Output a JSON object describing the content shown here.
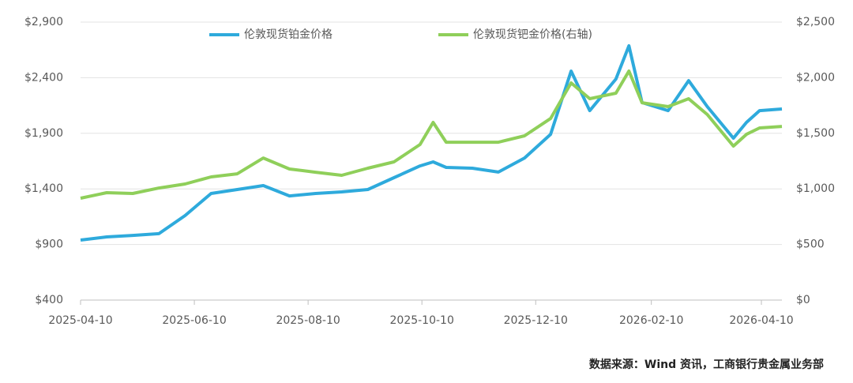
{
  "chart_data": {
    "type": "line",
    "legend": [
      "伦敦现货铂金价格",
      "伦敦现货钯金价格(右轴)"
    ],
    "source": "数据来源：Wind 资讯，工商银行贵金属业务部",
    "x": [
      "2025-04-10",
      "2025-04-24",
      "2025-05-08",
      "2025-05-22",
      "2025-06-05",
      "2025-06-19",
      "2025-07-03",
      "2025-07-17",
      "2025-07-31",
      "2025-08-14",
      "2025-08-28",
      "2025-09-11",
      "2025-09-25",
      "2025-10-09",
      "2025-10-16",
      "2025-10-23",
      "2025-11-06",
      "2025-11-20",
      "2025-12-04",
      "2025-12-18",
      "2025-12-29",
      "2026-01-08",
      "2026-01-22",
      "2026-01-29",
      "2026-02-05",
      "2026-02-19",
      "2026-03-02",
      "2026-03-12",
      "2026-03-26",
      "2026-04-02",
      "2026-04-09",
      "2026-04-21"
    ],
    "xlim": [
      "2025-04-10",
      "2026-04-21"
    ],
    "xticks": [
      "2025-04-10",
      "2025-06-10",
      "2025-08-10",
      "2025-10-10",
      "2025-12-10",
      "2026-02-10",
      "2026-04-10"
    ],
    "series": [
      {
        "name": "伦敦现货铂金价格",
        "color": "#2eaadc",
        "axis": "y",
        "values": [
          940,
          968,
          982,
          997,
          1160,
          1359,
          1394,
          1430,
          1337,
          1359,
          1373,
          1394,
          1501,
          1607,
          1643,
          1593,
          1586,
          1551,
          1678,
          1891,
          2460,
          2104,
          2388,
          2687,
          2176,
          2104,
          2374,
          2140,
          1856,
          1998,
          2104,
          2119
        ]
      },
      {
        "name": "伦敦现货钯金价格(右轴)",
        "color": "#8fcf5a",
        "axis": "y2",
        "values": [
          916,
          966,
          959,
          1008,
          1044,
          1108,
          1136,
          1278,
          1179,
          1150,
          1122,
          1186,
          1243,
          1399,
          1598,
          1420,
          1420,
          1420,
          1477,
          1633,
          1953,
          1811,
          1861,
          2060,
          1775,
          1740,
          1811,
          1669,
          1385,
          1491,
          1548,
          1562
        ]
      }
    ],
    "ylim": [
      400,
      2900
    ],
    "yticks": [
      {
        "value": 400,
        "label": "$400"
      },
      {
        "value": 900,
        "label": "$900"
      },
      {
        "value": 1400,
        "label": "$1,400"
      },
      {
        "value": 1900,
        "label": "$1,900"
      },
      {
        "value": 2400,
        "label": "$2,400"
      },
      {
        "value": 2900,
        "label": "$2,900"
      }
    ],
    "y2lim": [
      0,
      2500
    ],
    "y2ticks": [
      {
        "value": 0,
        "label": "$0"
      },
      {
        "value": 500,
        "label": "$500"
      },
      {
        "value": 1000,
        "label": "$1,000"
      },
      {
        "value": 1500,
        "label": "$1,500"
      },
      {
        "value": 2000,
        "label": "$2,000"
      },
      {
        "value": 2500,
        "label": "$2,500"
      }
    ],
    "grid": true
  }
}
